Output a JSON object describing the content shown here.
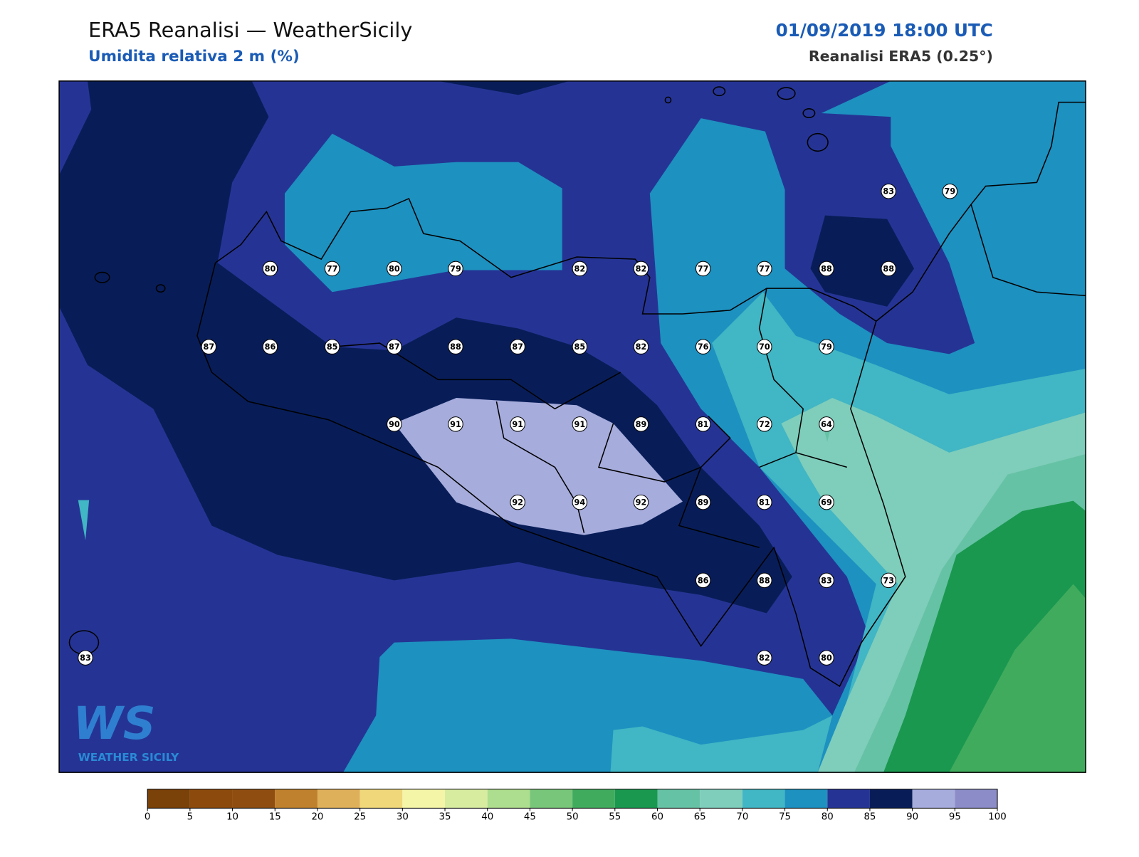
{
  "header": {
    "title": "ERA5 Reanalisi — WeatherSicily",
    "subtitle": "Umidita relativa 2 m (%)",
    "datetime": "01/09/2019 18:00 UTC",
    "source": "Reanalisi ERA5 (0.25°)"
  },
  "stations": [
    83,
    79,
    80,
    77,
    80,
    79,
    82,
    82,
    77,
    77,
    88,
    88,
    87,
    86,
    85,
    87,
    88,
    87,
    85,
    82,
    76,
    70,
    79,
    90,
    91,
    91,
    91,
    89,
    81,
    72,
    64,
    92,
    94,
    92,
    89,
    81,
    69,
    86,
    88,
    83,
    73,
    83,
    82,
    80
  ],
  "colorbar": {
    "ticks": [
      0,
      5,
      10,
      15,
      20,
      25,
      30,
      35,
      40,
      45,
      50,
      55,
      60,
      65,
      70,
      75,
      80,
      85,
      90,
      95,
      100
    ],
    "colors": [
      "#7a4108",
      "#8c4a0c",
      "#8f4d10",
      "#bf812d",
      "#dfb05a",
      "#f0d77a",
      "#f5f5a8",
      "#d8eca0",
      "#addd8e",
      "#78c679",
      "#41ab5d",
      "#1a9850",
      "#66c2a4",
      "#7fcdbb",
      "#41b6c4",
      "#1d91c0",
      "#253494",
      "#081d58",
      "#a6acdc",
      "#8c8cc8"
    ]
  },
  "logo": {
    "letters": "WS",
    "name": "WEATHER SICILY"
  }
}
